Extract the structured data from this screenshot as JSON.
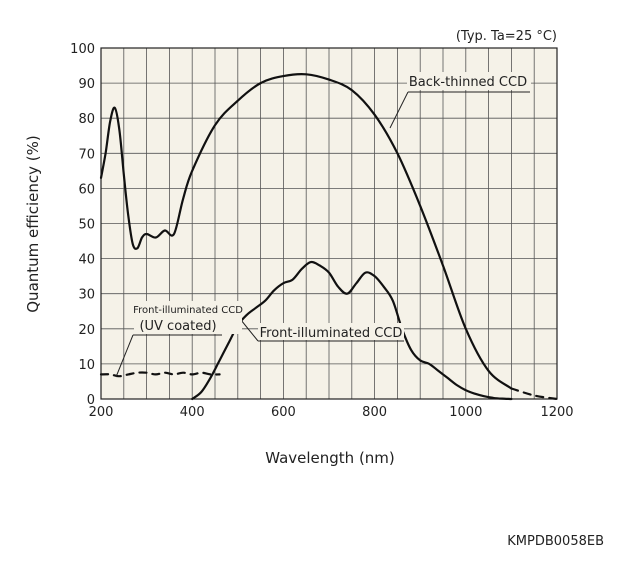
{
  "chart_data": {
    "type": "line",
    "condition_note": "(Typ. Ta=25 °C)",
    "xlabel": "Wavelength (nm)",
    "ylabel": "Quantum efficiency (%)",
    "xlim": [
      200,
      1200
    ],
    "ylim": [
      0,
      100
    ],
    "x_ticks": [
      "200",
      "400",
      "600",
      "800",
      "1000",
      "1200"
    ],
    "y_ticks": [
      "0",
      "10",
      "20",
      "30",
      "40",
      "50",
      "60",
      "70",
      "80",
      "90",
      "100"
    ],
    "grid": true,
    "series": [
      {
        "name": "Back-thinned CCD",
        "style": "solid",
        "x": [
          200,
          210,
          220,
          230,
          240,
          250,
          260,
          270,
          280,
          290,
          300,
          320,
          340,
          360,
          380,
          400,
          450,
          500,
          550,
          600,
          650,
          700,
          750,
          800,
          850,
          900,
          950,
          1000,
          1050,
          1100
        ],
        "y": [
          63,
          70,
          79,
          83,
          77,
          64,
          52,
          44,
          43,
          46,
          47,
          46,
          48,
          47,
          57,
          65,
          78,
          85,
          90,
          92,
          92.5,
          91,
          88,
          81,
          70,
          55,
          38,
          20,
          8,
          3
        ],
        "extension": {
          "style": "dashed",
          "x": [
            1100,
            1150,
            1200
          ],
          "y": [
            3,
            1,
            0
          ]
        }
      },
      {
        "name": "Front-illuminated CCD",
        "style": "solid",
        "x": [
          400,
          420,
          440,
          460,
          480,
          500,
          520,
          540,
          560,
          580,
          600,
          620,
          640,
          660,
          680,
          700,
          720,
          740,
          760,
          780,
          800,
          820,
          840,
          860,
          880,
          900,
          920,
          940,
          960,
          980,
          1000,
          1020,
          1040,
          1060,
          1080,
          1100
        ],
        "y": [
          0,
          2,
          6,
          11,
          16,
          21,
          24,
          26,
          28,
          31,
          33,
          34,
          37,
          39,
          38,
          36,
          32,
          30,
          33,
          36,
          35,
          32,
          28,
          20,
          14,
          11,
          10,
          8,
          6,
          4,
          2.5,
          1.5,
          0.8,
          0.3,
          0.1,
          0
        ],
        "callout": "Front-illuminated CCD"
      },
      {
        "name": "Front-illuminated CCD (UV coated)",
        "style": "dashed",
        "x": [
          200,
          220,
          240,
          260,
          280,
          300,
          320,
          340,
          360,
          380,
          400,
          420,
          440,
          460
        ],
        "y": [
          7,
          7,
          6.5,
          7,
          7.5,
          7.5,
          7,
          7.5,
          7,
          7.5,
          7,
          7.5,
          7,
          7
        ],
        "label_line1": "Front-illuminated CCD",
        "label_line2": "(UV coated)"
      }
    ]
  },
  "figure_code": "KMPDB0058EB"
}
